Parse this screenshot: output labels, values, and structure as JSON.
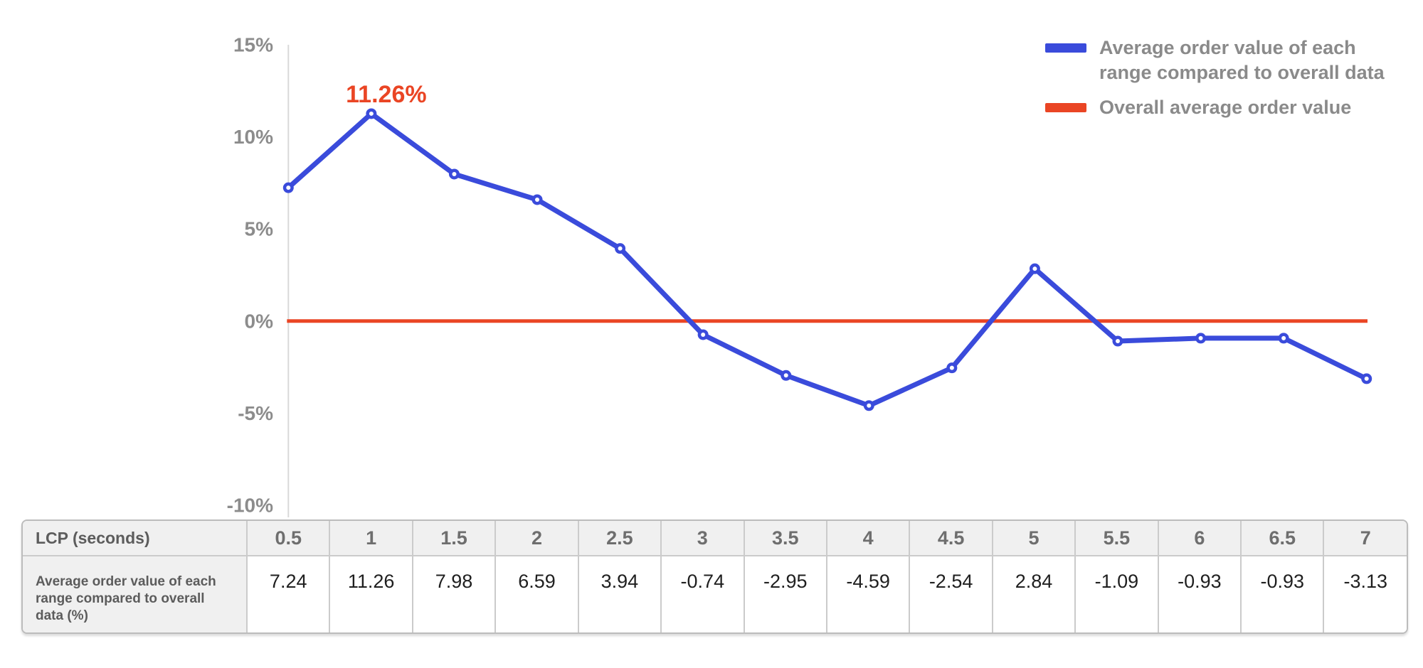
{
  "chart_data": {
    "type": "line",
    "x": [
      0.5,
      1,
      1.5,
      2,
      2.5,
      3,
      3.5,
      4,
      4.5,
      5,
      5.5,
      6,
      6.5,
      7
    ],
    "xlabel": "LCP (seconds)",
    "ylabel": "",
    "ylim": [
      -10,
      15
    ],
    "yticks": [
      15,
      10,
      5,
      0,
      -5,
      -10
    ],
    "ytick_labels": [
      "15%",
      "10%",
      "5%",
      "0%",
      "-5%",
      "-10%"
    ],
    "grid": false,
    "legend_position": "top-right",
    "series": [
      {
        "name": "Average order value of each range compared to overall data",
        "type": "line-with-markers",
        "color": "#3a4bdb",
        "values": [
          7.24,
          11.26,
          7.98,
          6.59,
          3.94,
          -0.74,
          -2.95,
          -4.59,
          -2.54,
          2.84,
          -1.09,
          -0.93,
          -0.93,
          -3.13
        ]
      },
      {
        "name": "Overall average order value",
        "type": "reference-line",
        "color": "#ea4524",
        "value": 0
      }
    ],
    "annotation": {
      "text": "11.26%",
      "at_x": 1,
      "at_y": 11.26
    }
  },
  "legend": {
    "items": [
      {
        "label": "Average order value of each\nrange compared to overall data",
        "color": "#3a4bdb"
      },
      {
        "label": "Overall average order value",
        "color": "#ea4524"
      }
    ]
  },
  "table": {
    "header_label": "LCP (seconds)",
    "row_label": "Average order value of each\nrange compared to overall\ndata (%)",
    "columns": [
      "0.5",
      "1",
      "1.5",
      "2",
      "2.5",
      "3",
      "3.5",
      "4",
      "4.5",
      "5",
      "5.5",
      "6",
      "6.5",
      "7"
    ],
    "values": [
      "7.24",
      "11.26",
      "7.98",
      "6.59",
      "3.94",
      "-0.74",
      "-2.95",
      "-4.59",
      "-2.54",
      "2.84",
      "-1.09",
      "-0.93",
      "-0.93",
      "-3.13"
    ]
  },
  "colors": {
    "series_blue": "#3a4bdb",
    "reference_red": "#ea4524",
    "axis_text": "#8c8c8c",
    "legend_text": "#8a8a8a",
    "axis_line": "#d9d9d9",
    "table_border": "#cbcbcb",
    "table_header_bg": "#f0f0f0",
    "table_header_text": "#6e6e6e",
    "table_value_text": "#1f1f1f"
  }
}
